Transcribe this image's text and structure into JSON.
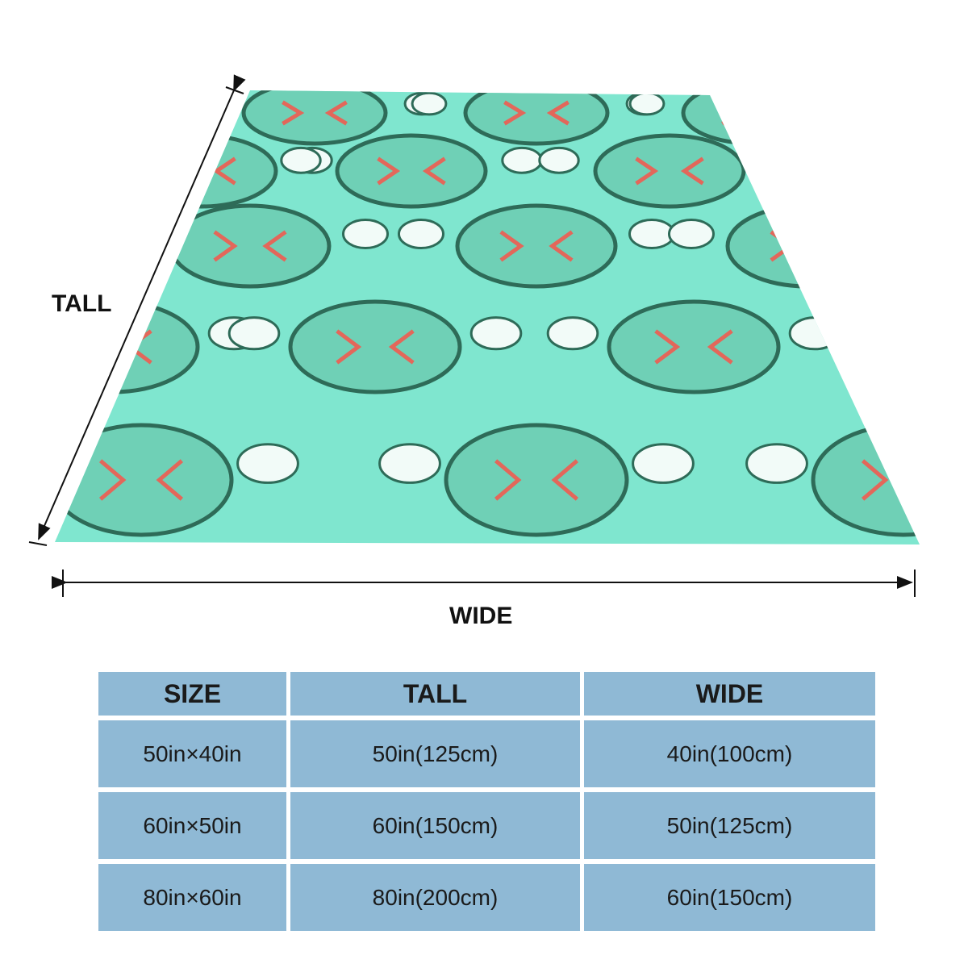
{
  "labels": {
    "tall": "TALL",
    "wide": "WIDE"
  },
  "table": {
    "header": [
      "SIZE",
      "TALL",
      "WIDE"
    ],
    "rows": [
      [
        "50in×40in",
        "50in(125cm)",
        "40in(100cm)"
      ],
      [
        "60in×50in",
        "60in(150cm)",
        "50in(125cm)"
      ],
      [
        "80in×60in",
        "80in(200cm)",
        "60in(150cm)"
      ]
    ]
  }
}
